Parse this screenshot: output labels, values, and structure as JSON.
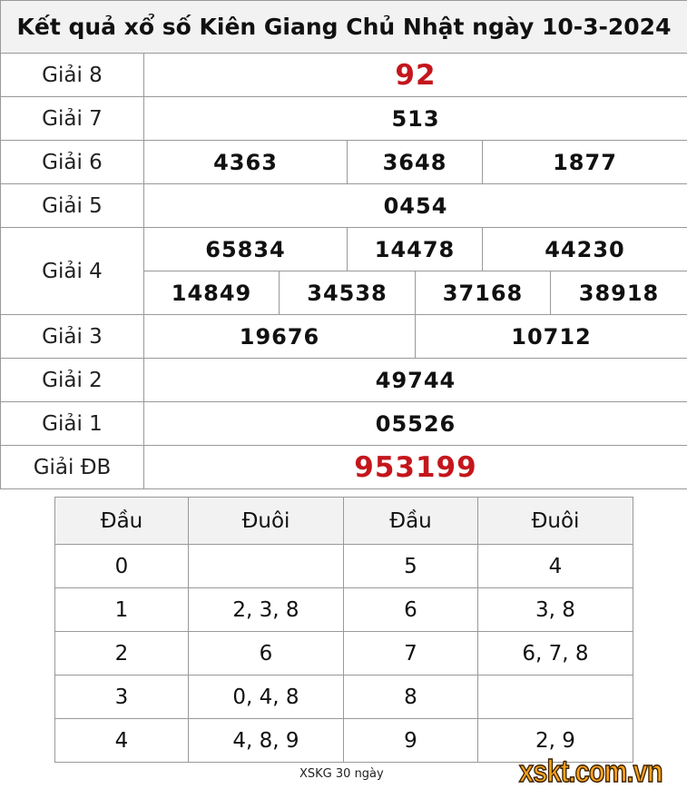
{
  "title": "Kết quả xổ số Kiên Giang Chủ Nhật ngày 10-3-2024",
  "prizes": {
    "g8": {
      "label": "Giải 8",
      "values": [
        "92"
      ]
    },
    "g7": {
      "label": "Giải 7",
      "values": [
        "513"
      ]
    },
    "g6": {
      "label": "Giải 6",
      "values": [
        "4363",
        "3648",
        "1877"
      ]
    },
    "g5": {
      "label": "Giải 5",
      "values": [
        "0454"
      ]
    },
    "g4": {
      "label": "Giải 4",
      "values": [
        "65834",
        "14478",
        "44230",
        "14849",
        "34538",
        "37168",
        "38918"
      ]
    },
    "g3": {
      "label": "Giải 3",
      "values": [
        "19676",
        "10712"
      ]
    },
    "g2": {
      "label": "Giải 2",
      "values": [
        "49744"
      ]
    },
    "g1": {
      "label": "Giải 1",
      "values": [
        "05526"
      ]
    },
    "db": {
      "label": "Giải ĐB",
      "values": [
        "953199"
      ]
    }
  },
  "loto": {
    "headers": [
      "Đầu",
      "Đuôi",
      "Đầu",
      "Đuôi"
    ],
    "rows": [
      [
        "0",
        "",
        "5",
        "4"
      ],
      [
        "1",
        "2, 3, 8",
        "6",
        "3, 8"
      ],
      [
        "2",
        "6",
        "7",
        "6, 7, 8"
      ],
      [
        "3",
        "0, 4, 8",
        "8",
        ""
      ],
      [
        "4",
        "4, 8, 9",
        "9",
        "2, 9"
      ]
    ]
  },
  "footer_link": "XSKG 30 ngày",
  "logo": "xskt.com.vn",
  "colors": {
    "special": "#c4161c",
    "header_bg": "#f2f2f2",
    "logo": "#f7a21b"
  }
}
